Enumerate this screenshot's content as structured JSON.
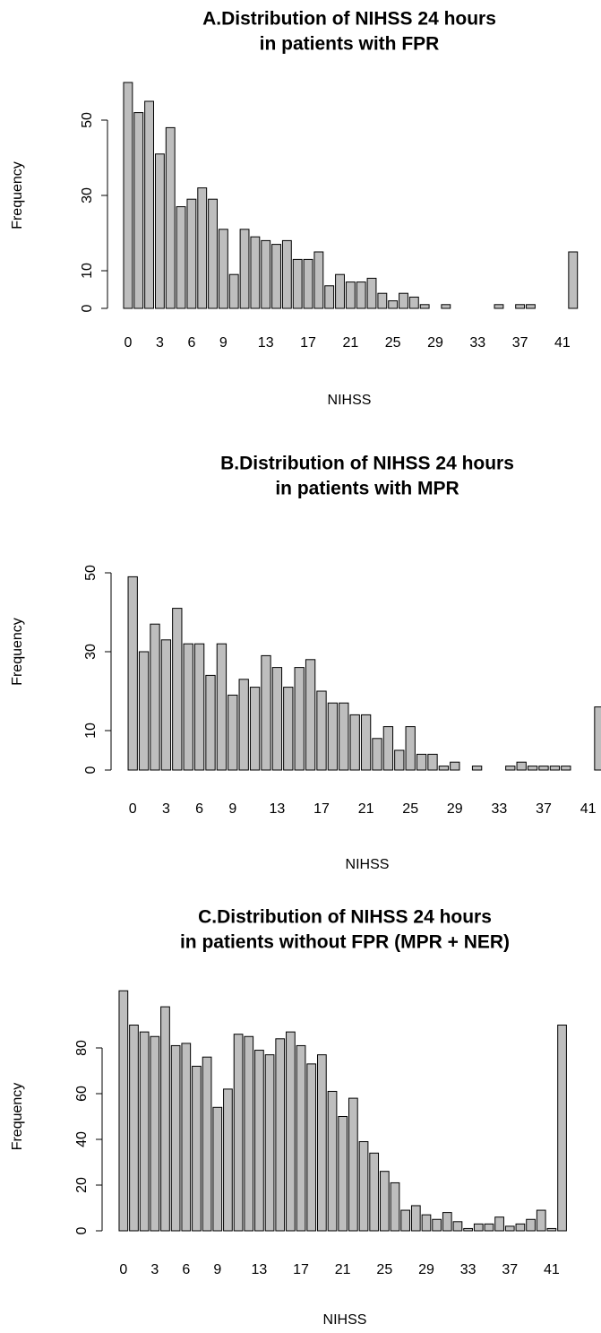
{
  "chart_data": [
    {
      "type": "bar",
      "title": [
        "A.Distribution of NIHSS 24 hours",
        "in patients with FPR"
      ],
      "x_label": "NIHSS",
      "y_label": "Frequency",
      "categories": [
        "0",
        null,
        null,
        "3",
        null,
        null,
        "6",
        null,
        null,
        "9",
        null,
        null,
        null,
        "13",
        null,
        null,
        null,
        "17",
        null,
        null,
        null,
        "21",
        null,
        null,
        null,
        "25",
        null,
        null,
        null,
        "29",
        null,
        null,
        null,
        "33",
        null,
        null,
        null,
        "37",
        null,
        null,
        null,
        "41",
        null
      ],
      "values": [
        60,
        52,
        55,
        41,
        48,
        27,
        29,
        32,
        29,
        21,
        9,
        21,
        19,
        18,
        17,
        18,
        13,
        13,
        15,
        6,
        9,
        7,
        7,
        8,
        4,
        2,
        4,
        3,
        1,
        0,
        1,
        0,
        0,
        0,
        0,
        1,
        0,
        1,
        1,
        0,
        0,
        0,
        15
      ],
      "color": "#bebebe",
      "ylim": [
        0,
        60
      ],
      "yticks": [
        0,
        10,
        30,
        50
      ]
    },
    {
      "type": "bar",
      "title": [
        "B.Distribution of NIHSS 24 hours",
        "in patients with MPR"
      ],
      "x_label": "NIHSS",
      "y_label": "Frequency",
      "categories": [
        "0",
        null,
        null,
        "3",
        null,
        null,
        "6",
        null,
        null,
        "9",
        null,
        null,
        null,
        "13",
        null,
        null,
        null,
        "17",
        null,
        null,
        null,
        "21",
        null,
        null,
        null,
        "25",
        null,
        null,
        null,
        "29",
        null,
        null,
        null,
        "33",
        null,
        null,
        null,
        "37",
        null,
        null,
        null,
        "41",
        null
      ],
      "values": [
        49,
        30,
        37,
        33,
        41,
        32,
        32,
        24,
        32,
        19,
        23,
        21,
        29,
        26,
        21,
        26,
        28,
        20,
        17,
        17,
        14,
        14,
        8,
        11,
        5,
        11,
        4,
        4,
        1,
        2,
        0,
        1,
        0,
        0,
        1,
        2,
        1,
        1,
        1,
        1,
        0,
        0,
        16
      ],
      "color": "#bebebe",
      "ylim": [
        0,
        60
      ],
      "yticks": [
        0,
        10,
        30,
        50
      ]
    },
    {
      "type": "bar",
      "title": [
        "C.Distribution of NIHSS 24 hours",
        "in patients without FPR (MPR + NER)"
      ],
      "x_label": "NIHSS",
      "y_label": "Frequency",
      "categories": [
        "0",
        null,
        null,
        "3",
        null,
        null,
        "6",
        null,
        null,
        "9",
        null,
        null,
        null,
        "13",
        null,
        null,
        null,
        "17",
        null,
        null,
        null,
        "21",
        null,
        null,
        null,
        "25",
        null,
        null,
        null,
        "29",
        null,
        null,
        null,
        "33",
        null,
        null,
        null,
        "37",
        null,
        null,
        null,
        "41",
        null
      ],
      "values": [
        105,
        90,
        87,
        85,
        98,
        81,
        82,
        72,
        76,
        54,
        62,
        86,
        85,
        79,
        77,
        84,
        87,
        81,
        73,
        77,
        61,
        50,
        58,
        39,
        34,
        26,
        21,
        9,
        11,
        7,
        5,
        8,
        4,
        1,
        3,
        3,
        6,
        2,
        3,
        5,
        9,
        1,
        90
      ],
      "color": "#bebebe",
      "ylim": [
        0,
        100
      ],
      "yticks": [
        0,
        20,
        40,
        60,
        80
      ]
    }
  ]
}
